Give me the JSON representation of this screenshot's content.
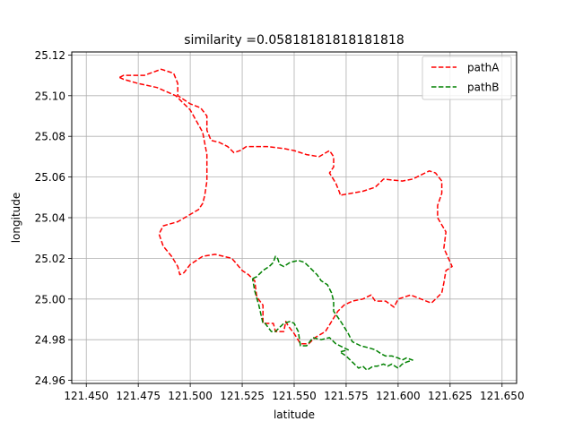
{
  "chart_data": {
    "type": "line",
    "title": "similarity =0.05818181818181818",
    "xlabel": "latitude",
    "ylabel": "longitude",
    "xlim": [
      121.443,
      121.657
    ],
    "ylim": [
      24.9585,
      25.1215
    ],
    "xticks": [
      121.45,
      121.475,
      121.5,
      121.525,
      121.55,
      121.575,
      121.6,
      121.625,
      121.65
    ],
    "xtick_labels": [
      "121.450",
      "121.475",
      "121.500",
      "121.525",
      "121.550",
      "121.575",
      "121.600",
      "121.625",
      "121.650"
    ],
    "yticks": [
      24.96,
      24.98,
      25.0,
      25.02,
      25.04,
      25.06,
      25.08,
      25.1,
      25.12
    ],
    "ytick_labels": [
      "24.96",
      "24.98",
      "25.00",
      "25.02",
      "25.04",
      "25.06",
      "25.08",
      "25.10",
      "25.12"
    ],
    "grid": true,
    "legend_position": "upper right",
    "series": [
      {
        "name": "pathA",
        "color": "#ff0000",
        "style": "dashed",
        "x": [
          121.466,
          121.468,
          121.478,
          121.486,
          121.492,
          121.494,
          121.494,
          121.5,
          121.505,
          121.508,
          121.508,
          121.51,
          121.514,
          121.518,
          121.521,
          121.524,
          121.527,
          121.53,
          121.537,
          121.545,
          121.55,
          121.556,
          121.562,
          121.567,
          121.569,
          121.569,
          121.567,
          121.57,
          121.572,
          121.572,
          121.583,
          121.589,
          121.593,
          121.602,
          121.607,
          121.611,
          121.615,
          121.618,
          121.621,
          121.621,
          121.619,
          121.619,
          121.623,
          121.622,
          121.626,
          121.623,
          121.622,
          121.621,
          121.616,
          121.606,
          121.6,
          121.598,
          121.594,
          121.589,
          121.587,
          121.583,
          121.578,
          121.574,
          121.571,
          121.565,
          121.56,
          121.557,
          121.553,
          121.55,
          121.547,
          121.546,
          121.545,
          121.541,
          121.54,
          121.535,
          121.535,
          121.532,
          121.531,
          121.528,
          121.525,
          121.52,
          121.512,
          121.506,
          121.5,
          121.497,
          121.495,
          121.494,
          121.491,
          121.487,
          121.485,
          121.487,
          121.494,
          121.499,
          121.504,
          121.506,
          121.507,
          121.508,
          121.508,
          121.506,
          121.5,
          121.493,
          121.484,
          121.475,
          121.468,
          121.466
        ],
        "y": [
          25.109,
          25.11,
          25.11,
          25.113,
          25.111,
          25.106,
          25.1,
          25.096,
          25.094,
          25.09,
          25.083,
          25.078,
          25.077,
          25.075,
          25.072,
          25.073,
          25.075,
          25.075,
          25.075,
          25.074,
          25.073,
          25.071,
          25.07,
          25.073,
          25.07,
          25.065,
          25.062,
          25.057,
          25.052,
          25.051,
          25.053,
          25.055,
          25.059,
          25.058,
          25.059,
          25.061,
          25.063,
          25.062,
          25.058,
          25.052,
          25.046,
          25.04,
          25.033,
          25.025,
          25.016,
          25.014,
          25.008,
          25.003,
          24.998,
          25.002,
          25.0,
          24.996,
          24.999,
          24.999,
          25.002,
          25.0,
          24.999,
          24.997,
          24.994,
          24.984,
          24.981,
          24.978,
          24.978,
          24.983,
          24.987,
          24.989,
          24.984,
          24.984,
          24.988,
          24.988,
          24.997,
          25.001,
          25.009,
          25.012,
          25.014,
          25.02,
          25.022,
          25.021,
          25.017,
          25.013,
          25.012,
          25.016,
          25.021,
          25.026,
          25.032,
          25.036,
          25.038,
          25.041,
          25.044,
          25.047,
          25.051,
          25.058,
          25.071,
          25.082,
          25.093,
          25.1,
          25.104,
          25.106,
          25.108,
          25.109
        ]
      },
      {
        "name": "pathB",
        "color": "#008000",
        "style": "dashed",
        "x": [
          121.53,
          121.532,
          121.535,
          121.538,
          121.54,
          121.541,
          121.542,
          121.543,
          121.545,
          121.548,
          121.552,
          121.555,
          121.558,
          121.561,
          121.563,
          121.566,
          121.568,
          121.569,
          121.569,
          121.571,
          121.573,
          121.576,
          121.578,
          121.582,
          121.586,
          121.589,
          121.592,
          121.594,
          121.597,
          121.6,
          121.602,
          121.604,
          121.607,
          121.604,
          121.602,
          121.6,
          121.597,
          121.595,
          121.593,
          121.59,
          121.588,
          121.585,
          121.583,
          121.581,
          121.578,
          121.575,
          121.572,
          121.576,
          121.574,
          121.572,
          121.57,
          121.567,
          121.563,
          121.559,
          121.556,
          121.553,
          121.552,
          121.55,
          121.548,
          121.545,
          121.541,
          121.539,
          121.536,
          121.535,
          121.533,
          121.531,
          121.53
        ],
        "y": [
          25.01,
          25.011,
          25.014,
          25.016,
          25.018,
          25.021,
          25.02,
          25.017,
          25.016,
          25.018,
          25.019,
          25.018,
          25.015,
          25.012,
          25.009,
          25.007,
          25.003,
          24.999,
          24.994,
          24.991,
          24.988,
          24.983,
          24.979,
          24.977,
          24.976,
          24.975,
          24.973,
          24.972,
          24.972,
          24.971,
          24.97,
          24.971,
          24.97,
          24.969,
          24.968,
          24.966,
          24.968,
          24.967,
          24.968,
          24.967,
          24.967,
          24.965,
          24.967,
          24.966,
          24.969,
          24.972,
          24.974,
          24.975,
          24.976,
          24.977,
          24.978,
          24.981,
          24.98,
          24.981,
          24.977,
          24.977,
          24.984,
          24.988,
          24.989,
          24.988,
          24.984,
          24.984,
          24.988,
          24.988,
          24.997,
          25.004,
          25.01
        ]
      }
    ]
  }
}
